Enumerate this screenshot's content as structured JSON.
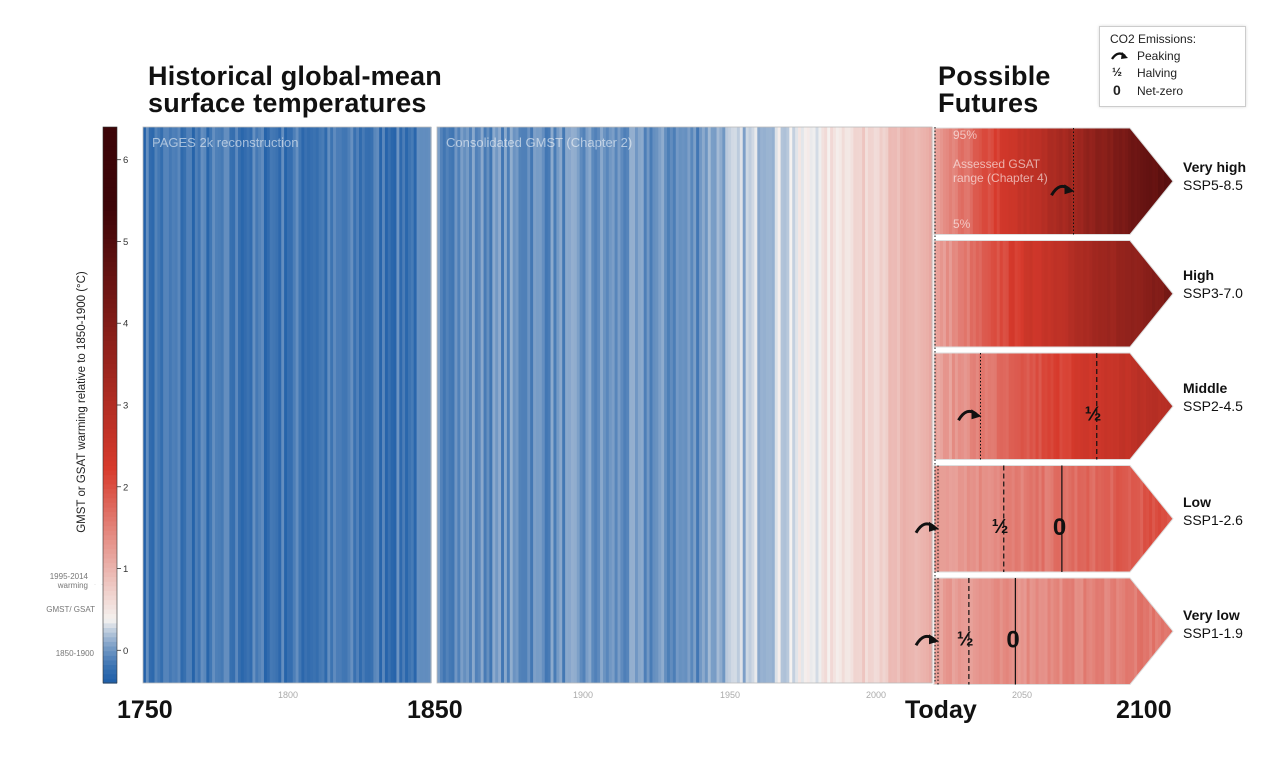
{
  "titles": {
    "historical_line1": "Historical global-mean",
    "historical_line2": "surface temperatures",
    "futures_line1": "Possible",
    "futures_line2": "Futures"
  },
  "colorbar": {
    "ylabel": "GMST or GSAT warming relative to 1850-1900 (°C)",
    "ticks": [
      "0",
      "1",
      "2",
      "3",
      "4",
      "5",
      "6"
    ],
    "annotation_recent": "1995-2014 warming",
    "annotation_gmst": "GMST/ GSAT",
    "annotation_base": "1850-1900"
  },
  "panels": {
    "pages2k": "PAGES 2k reconstruction",
    "consolidated": "Consolidated GMST (Chapter 2)",
    "assessed_p95": "95%",
    "assessed_label": "Assessed GSAT range (Chapter 4)",
    "assessed_p5": "5%"
  },
  "legend": {
    "title": "CO2 Emissions:",
    "peaking": "Peaking",
    "halving": "Halving",
    "netzero": "Net-zero",
    "peaking_symbol": "peaking-arrow",
    "halving_symbol": "½",
    "netzero_symbol": "0"
  },
  "x_axis": {
    "labels_big": [
      "1750",
      "1850",
      "Today",
      "2100"
    ],
    "ticks_small": [
      "1800",
      "1900",
      "1950",
      "2000",
      "2050"
    ]
  },
  "colors": {
    "cold": "#1f5fa8",
    "neutral": "#f5f2f0",
    "warm": "#d73a2c",
    "hot": "#3d0508"
  },
  "chart_data": {
    "type": "heatmap",
    "title": "Historical global-mean surface temperatures / Possible Futures",
    "xlabel": "",
    "ylabel": "GMST or GSAT warming relative to 1850-1900 (°C)",
    "color_range": [
      -0.4,
      6.4
    ],
    "x": {
      "historical_start": 1750,
      "historical_end": 2020,
      "future_end": 2100
    },
    "historical_anomaly_segments": [
      {
        "start": 1750,
        "end": 1850,
        "mean": -0.2
      },
      {
        "start": 1850,
        "end": 1940,
        "mean": -0.05
      },
      {
        "start": 1940,
        "end": 1980,
        "mean": 0.3
      },
      {
        "start": 1980,
        "end": 2000,
        "mean": 0.6
      },
      {
        "start": 2000,
        "end": 2020,
        "mean": 0.9
      }
    ],
    "scenarios": [
      {
        "name": "Very high",
        "code": "SSP5-8.5",
        "start_value": 1.1,
        "end_value": 4.9,
        "peaking": 2080,
        "halving": null,
        "net_zero": null
      },
      {
        "name": "High",
        "code": "SSP3-7.0",
        "start_value": 1.1,
        "end_value": 4.2,
        "peaking": null,
        "halving": null,
        "net_zero": null
      },
      {
        "name": "Middle",
        "code": "SSP2-4.5",
        "start_value": 1.1,
        "end_value": 3.0,
        "peaking": 2040,
        "halving": 2090,
        "net_zero": null
      },
      {
        "name": "Low",
        "code": "SSP1-2.6",
        "start_value": 1.2,
        "end_value": 2.0,
        "peaking": 2020,
        "halving": 2050,
        "net_zero": 2075
      },
      {
        "name": "Very low",
        "code": "SSP1-1.9",
        "start_value": 1.2,
        "end_value": 1.6,
        "peaking": 2020,
        "halving": 2035,
        "net_zero": 2055
      }
    ]
  }
}
